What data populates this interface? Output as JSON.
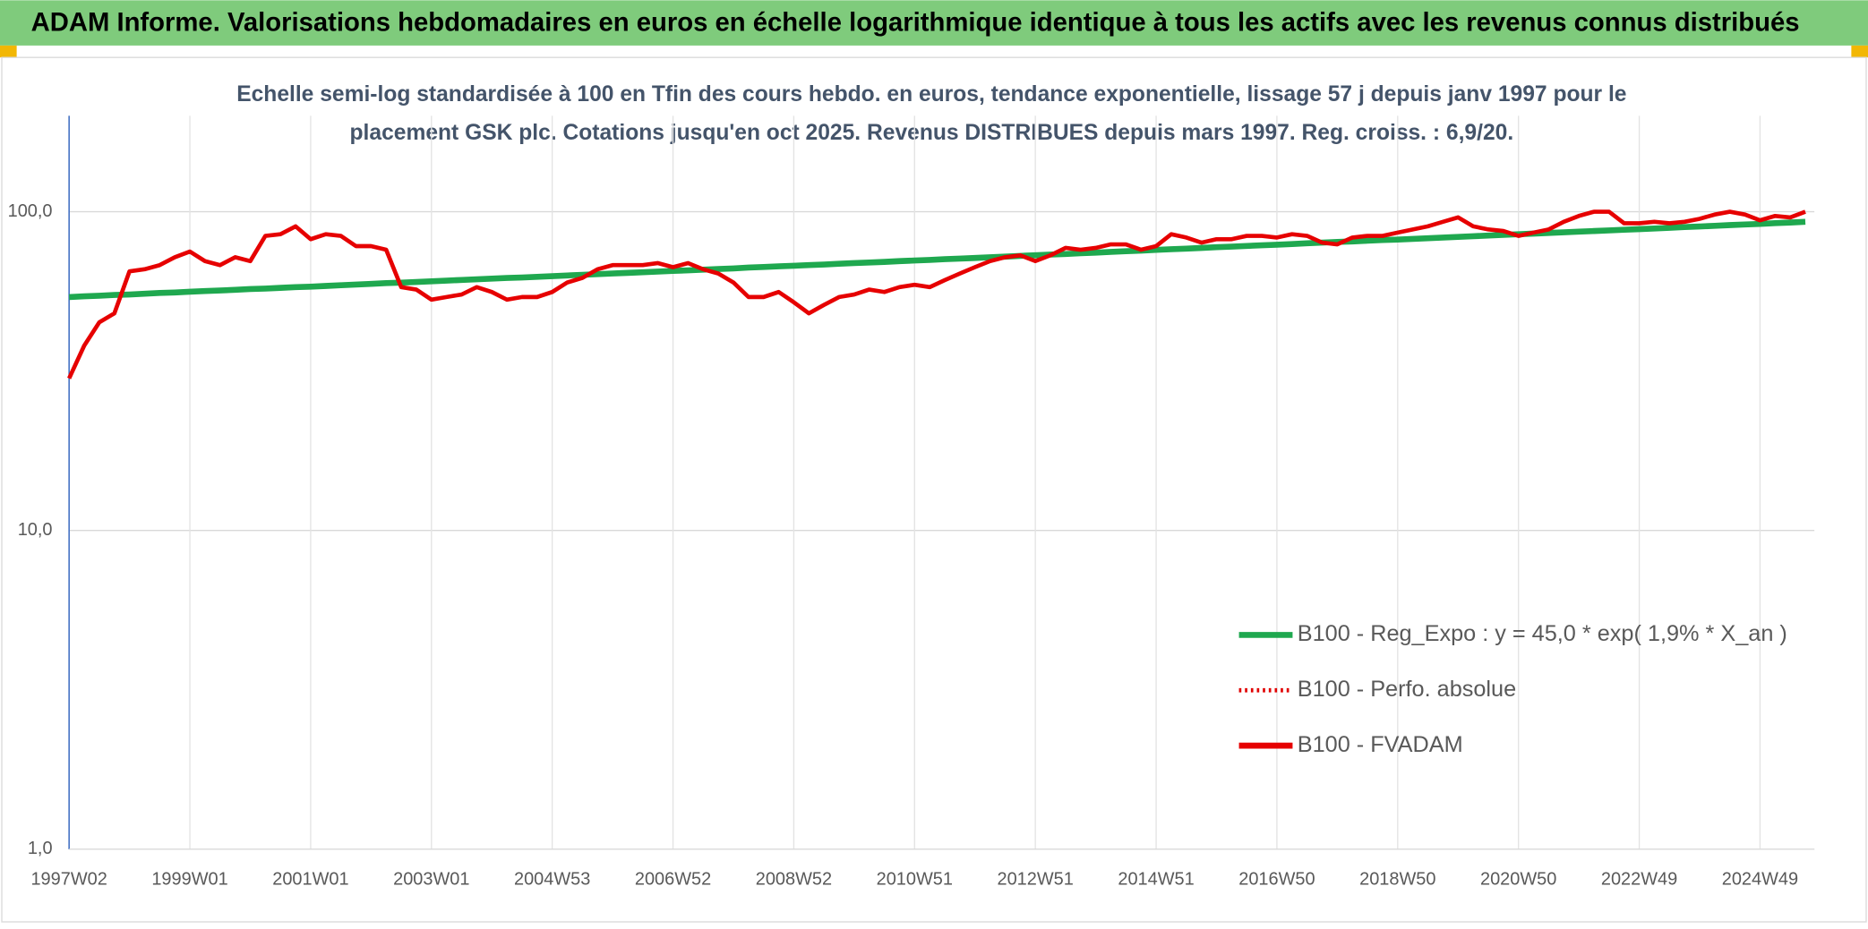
{
  "chart_data": {
    "type": "line",
    "title": "ADAM Informe. Valorisations hebdomadaires en euros en échelle logarithmique identique à tous les actifs avec les revenus connus distribués",
    "subtitle": [
      "Echelle semi-log standardisée à 100 en Tfin des cours hebdo. en euros, tendance exponentielle, lissage 57 j depuis janv 1997 pour le",
      "placement GSK plc. Cotations jusqu'en oct 2025. Revenus DISTRIBUES depuis mars 1997. Reg. croiss. : 6,9/20."
    ],
    "categories": [
      "1997W02",
      null,
      null,
      null,
      null,
      null,
      null,
      null,
      "1999W01",
      null,
      null,
      null,
      null,
      null,
      null,
      null,
      "2001W01",
      null,
      null,
      null,
      null,
      null,
      null,
      null,
      "2003W01",
      null,
      null,
      null,
      null,
      null,
      null,
      null,
      "2004W53",
      null,
      null,
      null,
      null,
      null,
      null,
      null,
      "2006W52",
      null,
      null,
      null,
      null,
      null,
      null,
      null,
      "2008W52",
      null,
      null,
      null,
      null,
      null,
      null,
      null,
      "2010W51",
      null,
      null,
      null,
      null,
      null,
      null,
      null,
      "2012W51",
      null,
      null,
      null,
      null,
      null,
      null,
      null,
      "2014W51",
      null,
      null,
      null,
      null,
      null,
      null,
      null,
      "2016W50",
      null,
      null,
      null,
      null,
      null,
      null,
      null,
      "2018W50",
      null,
      null,
      null,
      null,
      null,
      null,
      null,
      "2020W50",
      null,
      null,
      null,
      null,
      null,
      null,
      null,
      "2022W49",
      null,
      null,
      null,
      null,
      null,
      null,
      null,
      "2024W49",
      null,
      null,
      null
    ],
    "log_scale": true,
    "ylim": [
      1,
      200
    ],
    "yticks": [
      {
        "value": 1,
        "label": "1,0"
      },
      {
        "value": 10,
        "label": "10,0"
      },
      {
        "value": 100,
        "label": "100,0"
      }
    ],
    "grid": true,
    "legend": "lower right",
    "series": [
      {
        "name": "B100 - Reg_Expo : y = 45,0 * exp( 1,9% *  X_an )",
        "color": "#1fa84f",
        "style": "solid",
        "values": [
          54.0,
          54.3,
          54.5,
          54.8,
          55.0,
          55.3,
          55.6,
          55.8,
          56.1,
          56.4,
          56.6,
          56.9,
          57.2,
          57.4,
          57.7,
          58.0,
          58.2,
          58.5,
          58.8,
          59.1,
          59.4,
          59.7,
          59.9,
          60.2,
          60.5,
          60.8,
          61.1,
          61.4,
          61.7,
          62.0,
          62.2,
          62.5,
          62.8,
          63.1,
          63.4,
          63.7,
          64.0,
          64.3,
          64.6,
          64.9,
          65.2,
          65.5,
          65.8,
          66.1,
          66.4,
          66.8,
          67.1,
          67.4,
          67.7,
          68.0,
          68.3,
          68.7,
          69.0,
          69.3,
          69.6,
          70.0,
          70.3,
          70.6,
          71.0,
          71.3,
          71.6,
          72.0,
          72.3,
          72.7,
          73.0,
          73.4,
          73.7,
          74.1,
          74.4,
          74.8,
          75.2,
          75.5,
          75.9,
          76.3,
          76.6,
          77.0,
          77.4,
          77.7,
          78.1,
          78.5,
          78.8,
          79.2,
          79.6,
          80.0,
          80.4,
          80.7,
          81.1,
          81.5,
          81.8,
          82.2,
          82.6,
          83.0,
          83.4,
          83.8,
          84.2,
          84.6,
          85.0,
          85.4,
          85.8,
          86.2,
          86.6,
          87.0,
          87.4,
          87.8,
          88.2,
          88.6,
          89.0,
          89.5,
          89.9,
          90.3,
          90.8,
          91.2,
          91.6,
          92.1,
          92.5,
          93.0
        ]
      },
      {
        "name": "B100 - Perfo. absolue",
        "color": "#e00000",
        "style": "dotted",
        "values": [
          null,
          null,
          null,
          null,
          null,
          null,
          null,
          null,
          null,
          null,
          null,
          null,
          null,
          null,
          null,
          null,
          null,
          null,
          null,
          null,
          null,
          null,
          null,
          null,
          null,
          null,
          null,
          null,
          null,
          null,
          null,
          null,
          null,
          null,
          null,
          null,
          null,
          null,
          null,
          null,
          null,
          null,
          null,
          null,
          null,
          null,
          null,
          null,
          null,
          null,
          null,
          null,
          null,
          null,
          null,
          null,
          null,
          null,
          null,
          null,
          null,
          null,
          null,
          null,
          null,
          null,
          null,
          null,
          null,
          null,
          null,
          null,
          null,
          null,
          null,
          null,
          null,
          null,
          null,
          null,
          null,
          null,
          null,
          null,
          null,
          null,
          null,
          null,
          null,
          null,
          null,
          null,
          null,
          null,
          null,
          null,
          null,
          null,
          null,
          null,
          null,
          null,
          null,
          null,
          null,
          null,
          null,
          null,
          null,
          null,
          null,
          null,
          null,
          null,
          null,
          null
        ]
      },
      {
        "name": "B100 - FVADAM",
        "color": "#e60000",
        "style": "solid",
        "values": [
          30,
          38,
          45,
          48,
          65,
          66,
          68,
          72,
          75,
          70,
          68,
          72,
          70,
          84,
          85,
          90,
          82,
          85,
          84,
          78,
          78,
          76,
          58,
          57,
          53,
          54,
          55,
          58,
          56,
          53,
          54,
          54,
          56,
          60,
          62,
          66,
          68,
          68,
          68,
          69,
          67,
          69,
          66,
          64,
          60,
          54,
          54,
          56,
          52,
          48,
          51,
          54,
          55,
          57,
          56,
          58,
          59,
          58,
          61,
          64,
          67,
          70,
          72,
          73,
          70,
          73,
          77,
          76,
          77,
          79,
          79,
          76,
          78,
          85,
          83,
          80,
          82,
          82,
          84,
          84,
          83,
          85,
          84,
          80,
          79,
          83,
          84,
          84,
          86,
          88,
          90,
          93,
          96,
          90,
          88,
          87,
          84,
          86,
          88,
          93,
          97,
          100,
          100,
          92,
          92,
          93,
          92,
          93,
          95,
          98,
          100,
          98,
          94,
          97,
          96,
          100
        ]
      }
    ]
  }
}
